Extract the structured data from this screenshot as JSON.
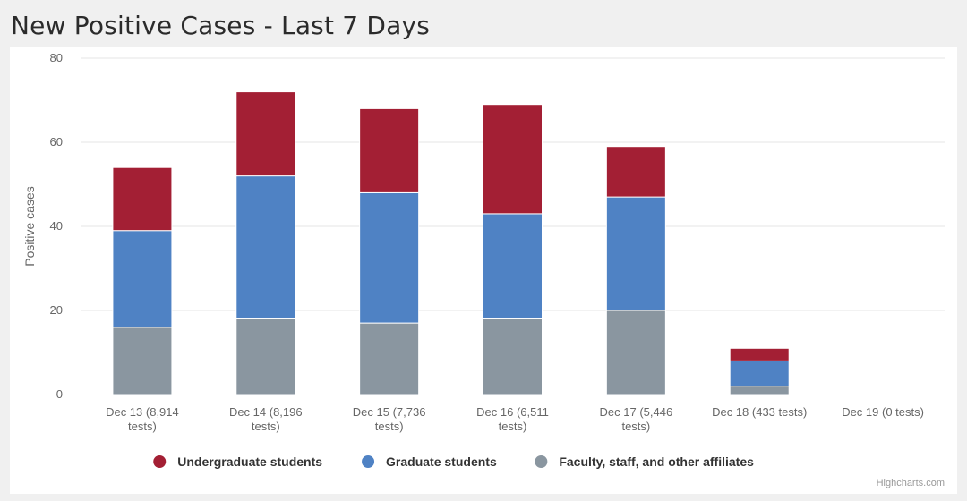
{
  "page": {
    "title": "New Positive Cases - Last 7 Days"
  },
  "chart_data": {
    "type": "bar",
    "stacked": true,
    "title": "New Positive Cases - Last 7 Days",
    "xlabel": "",
    "ylabel": "Positive cases",
    "ylim": [
      0,
      80
    ],
    "yticks": [
      0,
      20,
      40,
      60,
      80
    ],
    "grid": true,
    "legend_position": "bottom",
    "categories": [
      [
        "Dec 13 (8,914",
        "tests)"
      ],
      [
        "Dec 14 (8,196",
        "tests)"
      ],
      [
        "Dec 15 (7,736",
        "tests)"
      ],
      [
        "Dec 16 (6,511",
        "tests)"
      ],
      [
        "Dec 17 (5,446",
        "tests)"
      ],
      [
        "Dec 18 (433 tests)"
      ],
      [
        "Dec 19 (0 tests)"
      ]
    ],
    "series": [
      {
        "name": "Faculty, staff, and other affiliates",
        "color": "#8a96a0",
        "values": [
          16,
          18,
          17,
          18,
          20,
          2,
          0
        ]
      },
      {
        "name": "Graduate students",
        "color": "#4f82c4",
        "values": [
          23,
          34,
          31,
          25,
          27,
          6,
          0
        ]
      },
      {
        "name": "Undergraduate students",
        "color": "#a31f34",
        "values": [
          15,
          20,
          20,
          26,
          12,
          3,
          0
        ]
      }
    ],
    "legend_order": [
      "Undergraduate students",
      "Graduate students",
      "Faculty, staff, and other affiliates"
    ],
    "credits": "Highcharts.com"
  }
}
